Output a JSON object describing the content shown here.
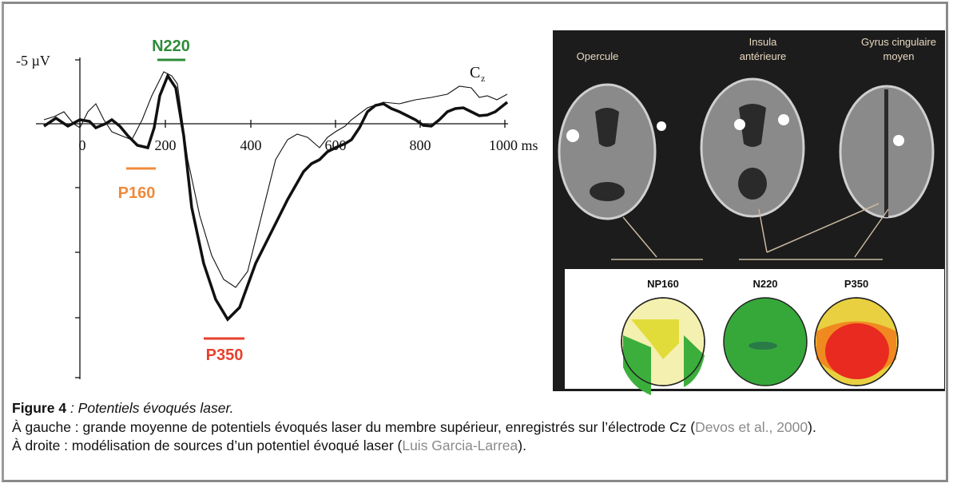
{
  "figure": {
    "left": {
      "y_label": "-5 µV",
      "x_ticks": [
        "0",
        "200",
        "400",
        "600",
        "800",
        "1000 ms"
      ],
      "channel": "C",
      "channel_sub": "z",
      "components": [
        {
          "label": "N220",
          "color": "#2e8b3a"
        },
        {
          "label": "P160",
          "color": "#f08a3c"
        },
        {
          "label": "P350",
          "color": "#e8402c"
        }
      ]
    },
    "right": {
      "regions": [
        {
          "lines": [
            "Opercule"
          ]
        },
        {
          "lines": [
            "Insula",
            "antérieure"
          ]
        },
        {
          "lines": [
            "Gyrus cingulaire",
            "moyen"
          ]
        }
      ],
      "maps": [
        "NP160",
        "N220",
        "P350"
      ]
    }
  },
  "caption": {
    "number": "Figure 4",
    "title": " : Potentiels évoqués laser.",
    "paragraphs": [
      {
        "before": "À gauche : grande moyenne de potentiels évoqués laser du membre supérieur, enregistrés sur l’électrode Cz (",
        "link": "Devos et al., 2000",
        "after": ")."
      },
      {
        "before": "À droite : modélisation de sources d’un potentiel évoqué laser (",
        "link": "Luis Garcia-Larrea",
        "after": ")."
      }
    ]
  }
}
